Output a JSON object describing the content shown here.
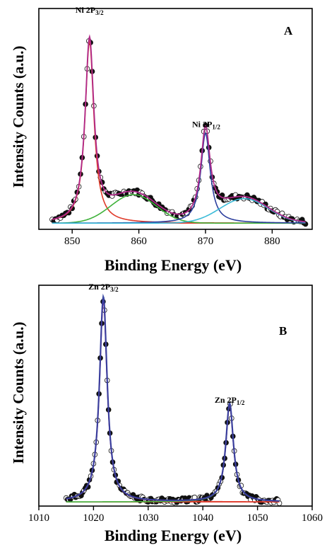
{
  "chart_data": [
    {
      "type": "line",
      "panel_label": "A",
      "xlabel": "Binding Energy (eV)",
      "ylabel": "Intensity Counts (a.u.)",
      "xlim": [
        845,
        886
      ],
      "ylim": [
        0,
        1.08
      ],
      "xticks": [
        850,
        860,
        870,
        880
      ],
      "yticks": [],
      "grid": false,
      "legend": "none",
      "annotations": [
        {
          "main": "Ni 2P",
          "sub": "3/2",
          "x": 852.6,
          "y": 1.06
        },
        {
          "main": "Ni 2P",
          "sub": "1/2",
          "x": 870.1,
          "y": 0.5
        }
      ],
      "x_range": [
        847,
        885
      ],
      "background": 0.03,
      "peaks": [
        {
          "color": "#e03a2a",
          "center": 852.6,
          "height": 0.89,
          "width": 0.8,
          "shape": "lorentzian"
        },
        {
          "color": "#3fb23a",
          "center": 859.2,
          "height": 0.14,
          "width": 3.4,
          "shape": "gaussian"
        },
        {
          "color": "#2d3f9e",
          "center": 870.0,
          "height": 0.44,
          "width": 0.85,
          "shape": "lorentzian"
        },
        {
          "color": "#3bbbd8",
          "center": 875.8,
          "height": 0.12,
          "width": 3.6,
          "shape": "gaussian"
        }
      ],
      "envelope_color": "#b02a8a",
      "data_points": {
        "step": 0.25,
        "noise": 0.012,
        "seed": 7
      }
    },
    {
      "type": "line",
      "panel_label": "B",
      "xlabel": "Binding Energy (eV)",
      "ylabel": "Intensity Counts (a.u.)",
      "xlim": [
        1010,
        1060
      ],
      "ylim": [
        0,
        1.07
      ],
      "xticks": [
        1010,
        1020,
        1030,
        1040,
        1050,
        1060
      ],
      "yticks": [],
      "grid": false,
      "legend": "none",
      "annotations": [
        {
          "main": "Zn 2P",
          "sub": "3/2",
          "x": 1021.8,
          "y": 1.05
        },
        {
          "main": "Zn 2P",
          "sub": "1/2",
          "x": 1044.9,
          "y": 0.5
        }
      ],
      "x_range": [
        1015,
        1054
      ],
      "background": 0.02,
      "peaks": [
        {
          "color": "#e03a2a",
          "center": 1021.8,
          "height": 0.98,
          "width": 0.85,
          "shape": "lorentzian"
        },
        {
          "color": "#3fb23a",
          "center": 1044.9,
          "height": 0.47,
          "width": 0.85,
          "shape": "lorentzian"
        }
      ],
      "envelope_color": "#b02a8a",
      "fit_color": "#2d3f9e",
      "data_points": {
        "step": 0.25,
        "noise": 0.012,
        "seed": 11
      }
    }
  ]
}
